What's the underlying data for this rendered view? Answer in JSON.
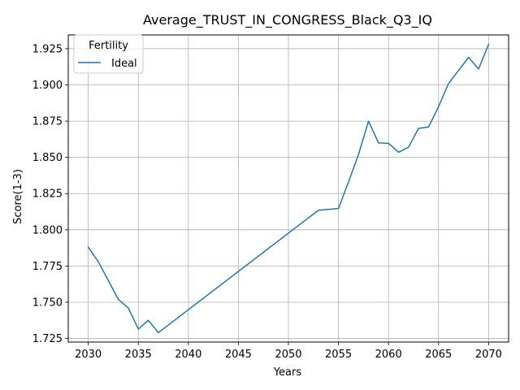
{
  "chart_data": {
    "type": "line",
    "title": "Average_TRUST_IN_CONGRESS_Black_Q3_IQ",
    "xlabel": "Years",
    "ylabel": "Score(1-3)",
    "xlim": [
      2028.0,
      2072.0
    ],
    "ylim": [
      1.7225,
      1.9345
    ],
    "xticks": [
      2030,
      2035,
      2040,
      2045,
      2050,
      2055,
      2060,
      2065,
      2070
    ],
    "yticks": [
      1.725,
      1.75,
      1.775,
      1.8,
      1.825,
      1.85,
      1.875,
      1.9,
      1.925
    ],
    "ytick_labels": [
      "1.725",
      "1.750",
      "1.775",
      "1.800",
      "1.825",
      "1.850",
      "1.875",
      "1.900",
      "1.925"
    ],
    "grid": true,
    "legend": {
      "title": "Fertility",
      "position": "top-left"
    },
    "series": [
      {
        "name": "Ideal",
        "color": "#1f77b4",
        "x": [
          2030,
          2031,
          2032,
          2033,
          2034,
          2035,
          2036,
          2037,
          2053,
          2055,
          2056,
          2057,
          2058,
          2059,
          2060,
          2061,
          2062,
          2063,
          2064,
          2065,
          2066,
          2067,
          2068,
          2069,
          2070
        ],
        "y": [
          1.788,
          1.778,
          1.765,
          1.752,
          1.746,
          1.7315,
          1.7375,
          1.729,
          1.8135,
          1.8147,
          1.833,
          1.852,
          1.875,
          1.86,
          1.8597,
          1.8535,
          1.857,
          1.87,
          1.871,
          1.885,
          1.901,
          1.91,
          1.919,
          1.911,
          1.928
        ]
      }
    ]
  }
}
